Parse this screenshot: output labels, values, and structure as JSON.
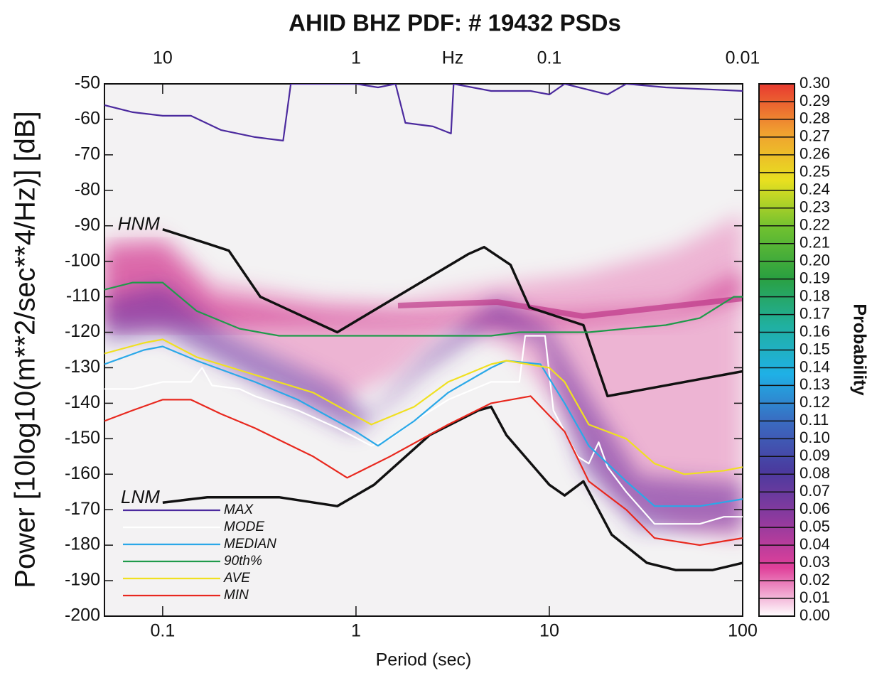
{
  "chart_data": {
    "type": "line",
    "title": "AHID BHZ  PDF: # 19432 PSDs",
    "x_label": "Period  (sec)",
    "y_label": "Power [10log10(m**2/sec**4/Hz)] [dB]",
    "x2_label": "Hz",
    "colorbar_label": "Probability",
    "log_x": true,
    "xlim": [
      0.05,
      100
    ],
    "xticks": [
      0.1,
      1,
      10,
      100
    ],
    "x2ticks": [
      10,
      1,
      0.1,
      0.01
    ],
    "ylim": [
      -200,
      -50
    ],
    "yticks": [
      -50,
      -60,
      -70,
      -80,
      -90,
      -100,
      -110,
      -120,
      -130,
      -140,
      -150,
      -160,
      -170,
      -180,
      -190,
      -200
    ],
    "clim": [
      0,
      0.3
    ],
    "cticks": [
      {
        "value": 0.3,
        "label": "0.30"
      },
      0.29,
      0.28,
      0.27,
      0.26,
      0.25,
      0.24,
      0.23,
      0.22,
      0.21,
      {
        "value": 0.2,
        "label": "0.20"
      },
      0.19,
      0.18,
      0.17,
      0.16,
      0.15,
      0.14,
      0.13,
      0.12,
      0.11,
      {
        "value": 0.1,
        "label": "0.10"
      },
      0.09,
      0.08,
      0.07,
      0.06,
      0.05,
      0.04,
      0.03,
      0.02,
      0.01,
      {
        "value": 0,
        "label": "0.00"
      }
    ],
    "colormap": [
      "#ffffff",
      "#e0409a",
      "#8e3a9e",
      "#4a3a9e",
      "#3a6ac0",
      "#1fb0e6",
      "#20b0a0",
      "#2aa040",
      "#6dc030",
      "#e8e020",
      "#f0a030",
      "#e83a30"
    ],
    "series": [
      {
        "name": "MAX",
        "color": "#4b2a9e",
        "x": [
          0.05,
          0.07,
          0.1,
          0.14,
          0.2,
          0.3,
          0.42,
          0.46,
          1,
          1.3,
          1.6,
          1.8,
          2.5,
          3.1,
          3.2,
          5,
          8,
          10,
          12,
          20,
          25,
          40,
          100
        ],
        "values": [
          -56,
          -58,
          -59,
          -59,
          -63,
          -65,
          -66,
          -50,
          -50,
          -51,
          -50,
          -61,
          -62,
          -64,
          -50,
          -52,
          -52,
          -53,
          -50,
          -53,
          -50,
          -51,
          -52
        ]
      },
      {
        "name": "MODE",
        "color": "#ffffff",
        "x": [
          0.05,
          0.07,
          0.1,
          0.14,
          0.16,
          0.18,
          0.25,
          0.3,
          0.5,
          0.8,
          1.2,
          1.5,
          2,
          3,
          5,
          7,
          7.5,
          9.5,
          10.5,
          14,
          16,
          18,
          20,
          25,
          35,
          60,
          80,
          100
        ],
        "values": [
          -136,
          -136,
          -134,
          -134,
          -130,
          -135,
          -136,
          -138,
          -142,
          -147,
          -152,
          -150,
          -145,
          -139,
          -134,
          -134,
          -121,
          -121,
          -142,
          -155,
          -157,
          -151,
          -158,
          -165,
          -174,
          -174,
          -172,
          -172
        ]
      },
      {
        "name": "MEDIAN",
        "color": "#2aa8e8",
        "x": [
          0.05,
          0.08,
          0.1,
          0.15,
          0.3,
          0.5,
          1,
          1.3,
          2,
          3,
          5,
          6,
          9,
          12,
          16,
          25,
          35,
          60,
          100
        ],
        "values": [
          -129,
          -125,
          -124,
          -128,
          -134,
          -139,
          -148,
          -152,
          -145,
          -137,
          -130,
          -128,
          -129,
          -140,
          -152,
          -162,
          -169,
          -169,
          -167
        ]
      },
      {
        "name": "90th%",
        "color": "#1f9a4a",
        "x": [
          0.05,
          0.07,
          0.1,
          0.15,
          0.25,
          0.4,
          1,
          5,
          7,
          12,
          16,
          25,
          40,
          60,
          90,
          100
        ],
        "values": [
          -108,
          -106,
          -106,
          -114,
          -119,
          -121,
          -121,
          -121,
          -120,
          -120,
          -120,
          -119,
          -118,
          -116,
          -110,
          -110
        ]
      },
      {
        "name": "AVE",
        "color": "#f0e020",
        "x": [
          0.05,
          0.08,
          0.1,
          0.15,
          0.3,
          0.6,
          1.2,
          2,
          3,
          5,
          6,
          10,
          12,
          16,
          25,
          35,
          50,
          80,
          100
        ],
        "values": [
          -126,
          -123,
          -122,
          -127,
          -132,
          -137,
          -146,
          -141,
          -134,
          -129,
          -128,
          -130,
          -134,
          -146,
          -150,
          -157,
          -160,
          -159,
          -158
        ]
      },
      {
        "name": "MIN",
        "color": "#e8281e",
        "x": [
          0.05,
          0.07,
          0.1,
          0.14,
          0.2,
          0.3,
          0.6,
          0.9,
          1.5,
          3,
          5,
          8,
          12,
          16,
          25,
          35,
          60,
          100
        ],
        "values": [
          -145,
          -142,
          -139,
          -139,
          -143,
          -147,
          -155,
          -161,
          -155,
          -146,
          -140,
          -138,
          -148,
          -162,
          -170,
          -178,
          -180,
          -178
        ]
      }
    ],
    "noise_models": [
      {
        "label": "HNM",
        "color": "#111111",
        "x": [
          0.1,
          0.17,
          0.22,
          0.32,
          0.8,
          3.8,
          4.6,
          6.3,
          7.9,
          15,
          20,
          100
        ],
        "values": [
          -91,
          -95,
          -97,
          -110,
          -120,
          -98,
          -96,
          -101,
          -113,
          -118,
          -138,
          -131
        ]
      },
      {
        "label": "LNM",
        "color": "#111111",
        "x": [
          0.1,
          0.17,
          0.4,
          0.8,
          1.24,
          2.4,
          4.3,
          5,
          6,
          10,
          12,
          15,
          21,
          32,
          45,
          70,
          100
        ],
        "values": [
          -168,
          -166.5,
          -166.5,
          -169,
          -163,
          -149,
          -142,
          -141,
          -149,
          -163,
          -166,
          -162,
          -177,
          -185,
          -187,
          -187,
          -185
        ]
      }
    ]
  }
}
